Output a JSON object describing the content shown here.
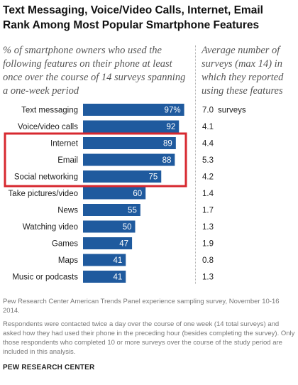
{
  "title": "Text Messaging, Voice/Video Calls, Internet, Email Rank Among Most Popular Smartphone Features",
  "subtitle_left": "% of smartphone owners who used the following features on their phone at least once over the course of 14 surveys spanning a one-week period",
  "subtitle_right": "Average number of surveys (max 14) in which they reported using these features",
  "chart_data": {
    "type": "bar",
    "orientation": "horizontal",
    "categories": [
      "Text messaging",
      "Voice/video calls",
      "Internet",
      "Email",
      "Social networking",
      "Take pictures/video",
      "News",
      "Watching video",
      "Games",
      "Maps",
      "Music or podcasts"
    ],
    "values": [
      97,
      92,
      89,
      88,
      75,
      60,
      55,
      50,
      47,
      41,
      41
    ],
    "value_labels": [
      "97%",
      "92",
      "89",
      "88",
      "75",
      "60",
      "55",
      "50",
      "47",
      "41",
      "41"
    ],
    "avg_surveys": [
      "7.0",
      "4.1",
      "4.4",
      "5.3",
      "4.2",
      "1.4",
      "1.7",
      "1.3",
      "1.9",
      "0.8",
      "1.3"
    ],
    "avg_unit": "surveys",
    "xlim": [
      0,
      100
    ],
    "highlighted_categories": [
      "Internet",
      "Email",
      "Social networking"
    ],
    "highlight_color": "#d7282f",
    "bar_color": "#1f5a9e",
    "label_color": "#ffffff",
    "grid": false
  },
  "source": "Pew Research Center American Trends Panel experience sampling survey, November 10-16 2014.",
  "footnote": "Respondents were contacted twice a day over the course of one week (14 total surveys) and asked how they had used their phone in the preceding hour (besides completing the survey). Only those respondents who completed 10 or more surveys over the course of the study period are included in this analysis.",
  "credit": "PEW RESEARCH CENTER"
}
